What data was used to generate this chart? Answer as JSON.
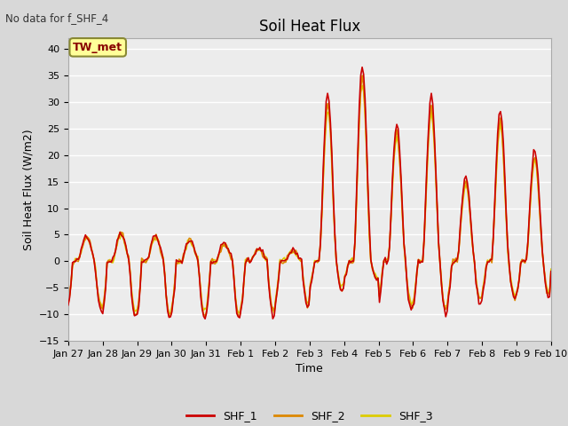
{
  "title": "Soil Heat Flux",
  "xlabel": "Time",
  "ylabel": "Soil Heat Flux (W/m2)",
  "top_left_text": "No data for f_SHF_4",
  "box_label": "TW_met",
  "ylim": [
    -15,
    42
  ],
  "yticks": [
    -15,
    -10,
    -5,
    0,
    5,
    10,
    15,
    20,
    25,
    30,
    35,
    40
  ],
  "xtick_labels": [
    "Jan 27",
    "Jan 28",
    "Jan 29",
    "Jan 30",
    "Jan 31",
    "Feb 1",
    "Feb 2",
    "Feb 3",
    "Feb 4",
    "Feb 5",
    "Feb 6",
    "Feb 7",
    "Feb 8",
    "Feb 9",
    "Feb 10"
  ],
  "legend_labels": [
    "SHF_1",
    "SHF_2",
    "SHF_3"
  ],
  "colors": [
    "#cc0000",
    "#dd8800",
    "#ddcc00"
  ],
  "fig_facecolor": "#d8d8d8",
  "plot_facecolor": "#ececec",
  "grid_color": "#ffffff",
  "n_points": 336,
  "days": 14
}
